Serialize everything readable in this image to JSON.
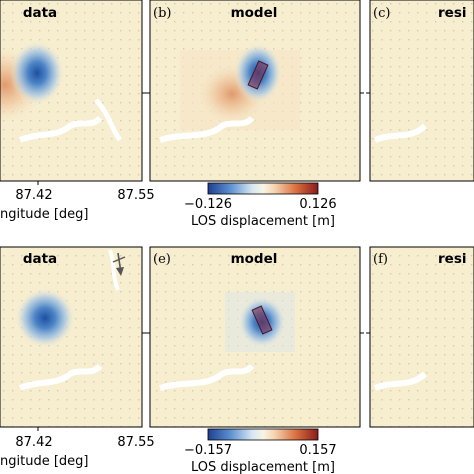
{
  "panels": [
    {
      "id": "a",
      "letter": "",
      "title": "data"
    },
    {
      "id": "b",
      "letter": "(b)",
      "title": "model"
    },
    {
      "id": "c",
      "letter": "(c)",
      "title": "resi"
    },
    {
      "id": "d",
      "letter": "",
      "title": "data"
    },
    {
      "id": "e",
      "letter": "(e)",
      "title": "model"
    },
    {
      "id": "f",
      "letter": "(f)",
      "title": "resi"
    }
  ],
  "axes": {
    "xtick_labels": [
      "87.42",
      "87.55"
    ],
    "xlabel": "ngitude [deg]"
  },
  "colorbars": [
    {
      "min_label": "−0.126",
      "max_label": "0.126",
      "label": "LOS displacement [m]",
      "range": [
        -0.126,
        0.126
      ]
    },
    {
      "min_label": "−0.157",
      "max_label": "0.157",
      "label": "LOS displacement [m]",
      "range": [
        -0.157,
        0.157
      ]
    }
  ],
  "colors": {
    "background_field": "#f7eecf",
    "negative": "#3b6fb6",
    "positive": "#c24a2c",
    "fault_patch": "#8b2b45"
  },
  "icons": {
    "north_arrow": "north-arrow-icon"
  },
  "chart_data": {
    "type": "heatmap",
    "colorscale": "diverging blue-white-red",
    "rows": [
      {
        "panels": [
          "data",
          "model",
          "resi"
        ],
        "range": [
          -0.126,
          0.126
        ],
        "unit": "m"
      },
      {
        "panels": [
          "data",
          "model",
          "resi"
        ],
        "range": [
          -0.157,
          0.157
        ],
        "unit": "m"
      }
    ],
    "x_tick_labels": [
      "87.42",
      "87.55"
    ],
    "xlabel": "ngitude [deg]",
    "colorbar_label": "LOS displacement [m]"
  }
}
